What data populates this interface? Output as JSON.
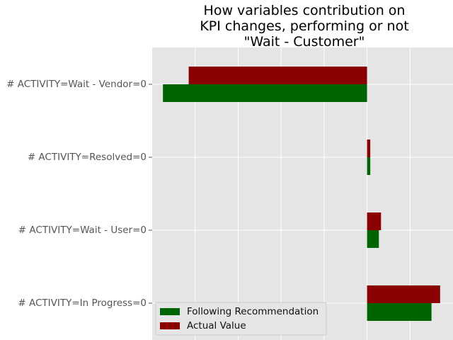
{
  "chart_data": {
    "type": "bar",
    "orientation": "horizontal",
    "title_lines": [
      "How variables contribution on",
      "KPI changes, performing or not",
      "\"Wait - Customer\""
    ],
    "categories": [
      "# ACTIVITY=Wait - Vendor=0",
      "# ACTIVITY=Resolved=0",
      "# ACTIVITY=Wait - User=0",
      "# ACTIVITY=In Progress=0"
    ],
    "series": [
      {
        "name": "Following Recommendation",
        "color": "#006400",
        "values": [
          -0.95,
          0.015,
          0.055,
          0.3
        ]
      },
      {
        "name": "Actual Value",
        "color": "#8b0000",
        "values": [
          -0.83,
          0.015,
          0.065,
          0.34
        ]
      }
    ],
    "xlim": [
      -1.0,
      0.4
    ],
    "x_gridlines": [
      -1.0,
      -0.8,
      -0.6,
      -0.4,
      -0.2,
      0.0,
      0.2,
      0.4
    ],
    "grid": true,
    "legend_position": "lower-left",
    "style": "ggplot"
  }
}
